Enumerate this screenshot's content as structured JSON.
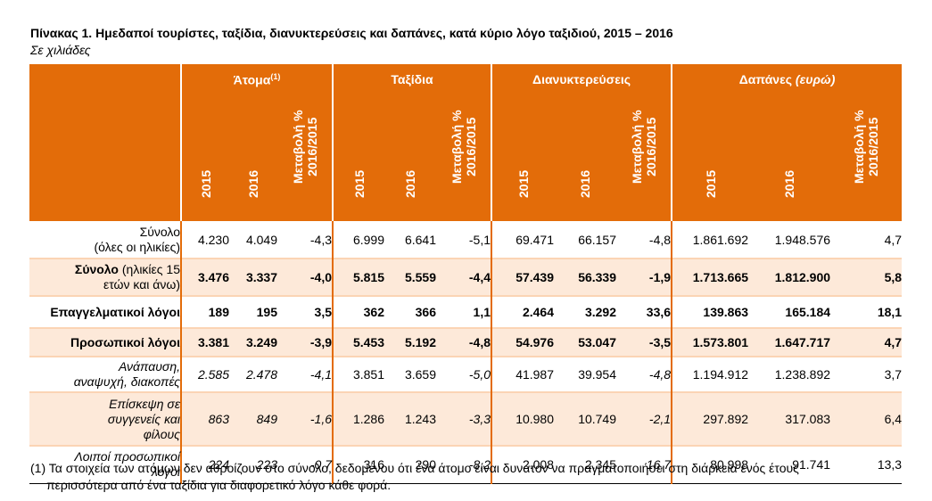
{
  "title": "Πίνακας 1. Ημεδαποί τουρίστες, ταξίδια, διανυκτερεύσεις και δαπάνες, κατά κύριο λόγο ταξιδιού, 2015 – 2016",
  "subtitle": "Σε χιλιάδες",
  "groups": {
    "persons": "Άτομα",
    "persons_note": "(1)",
    "trips": "Ταξίδια",
    "nights": "Διανυκτερεύσεις",
    "spend": "Δαπάνες",
    "spend_unit": "(ευρώ)"
  },
  "subheaders": {
    "y2015": "2015",
    "y2016": "2016",
    "change_l1": "Μεταβολή %",
    "change_l2": "2016/2015"
  },
  "rows": [
    {
      "label1": "Σύνολο",
      "label2": "(όλες οι ηλικίες)",
      "v": [
        "4.230",
        "4.049",
        "-4,3",
        "6.999",
        "6.641",
        "-5,1",
        "69.471",
        "66.157",
        "-4,8",
        "1.861.692",
        "1.948.576",
        "4,7"
      ]
    },
    {
      "label1": "Σύνολο",
      "label1b": " (ηλικίες 15",
      "label2": "ετών και άνω)",
      "v": [
        "3.476",
        "3.337",
        "-4,0",
        "5.815",
        "5.559",
        "-4,4",
        "57.439",
        "56.339",
        "-1,9",
        "1.713.665",
        "1.812.900",
        "5,8"
      ]
    },
    {
      "label1": "Επαγγελματικοί λόγοι",
      "v": [
        "189",
        "195",
        "3,5",
        "362",
        "366",
        "1,1",
        "2.464",
        "3.292",
        "33,6",
        "139.863",
        "165.184",
        "18,1"
      ]
    },
    {
      "label1": "Προσωπικοί λόγοι",
      "v": [
        "3.381",
        "3.249",
        "-3,9",
        "5.453",
        "5.192",
        "-4,8",
        "54.976",
        "53.047",
        "-3,5",
        "1.573.801",
        "1.647.717",
        "4,7"
      ]
    },
    {
      "label1": "Ανάπαυση,",
      "label2": "αναψυχή, διακοπές",
      "v": [
        "2.585",
        "2.478",
        "-4,1",
        "3.851",
        "3.659",
        "-5,0",
        "41.987",
        "39.954",
        "-4,8",
        "1.194.912",
        "1.238.892",
        "3,7"
      ]
    },
    {
      "label1": "Επίσκεψη σε",
      "label2": "συγγενείς και",
      "label3": "φίλους",
      "v": [
        "863",
        "849",
        "-1,6",
        "1.286",
        "1.243",
        "-3,3",
        "10.980",
        "10.749",
        "-2,1",
        "297.892",
        "317.083",
        "6,4"
      ]
    },
    {
      "label1": "Λοιποί προσωπικοί",
      "label2": "λόγοι",
      "v": [
        "224",
        "223",
        "-0,7",
        "316",
        "290",
        "-8,2",
        "2.008",
        "2.345",
        "16,7",
        "80.998",
        "91.741",
        "13,3"
      ]
    }
  ],
  "footnote": {
    "line1": "(1) Τα στοιχεία των ατόμων δεν αθροίζουν στο σύνολο, δεδομένου ότι ένα άτομο είναι δυνατόν να πραγματοποιήσει στη διάρκεια ενός έτους",
    "line2": "περισσότερα από ένα ταξίδια για διαφορετικό λόγο κάθε φορά."
  },
  "colors": {
    "header_bg": "#E36C09",
    "header_text": "#FFFFFF",
    "shade": "#FDE9D9",
    "separator": "#FBD4B4"
  }
}
